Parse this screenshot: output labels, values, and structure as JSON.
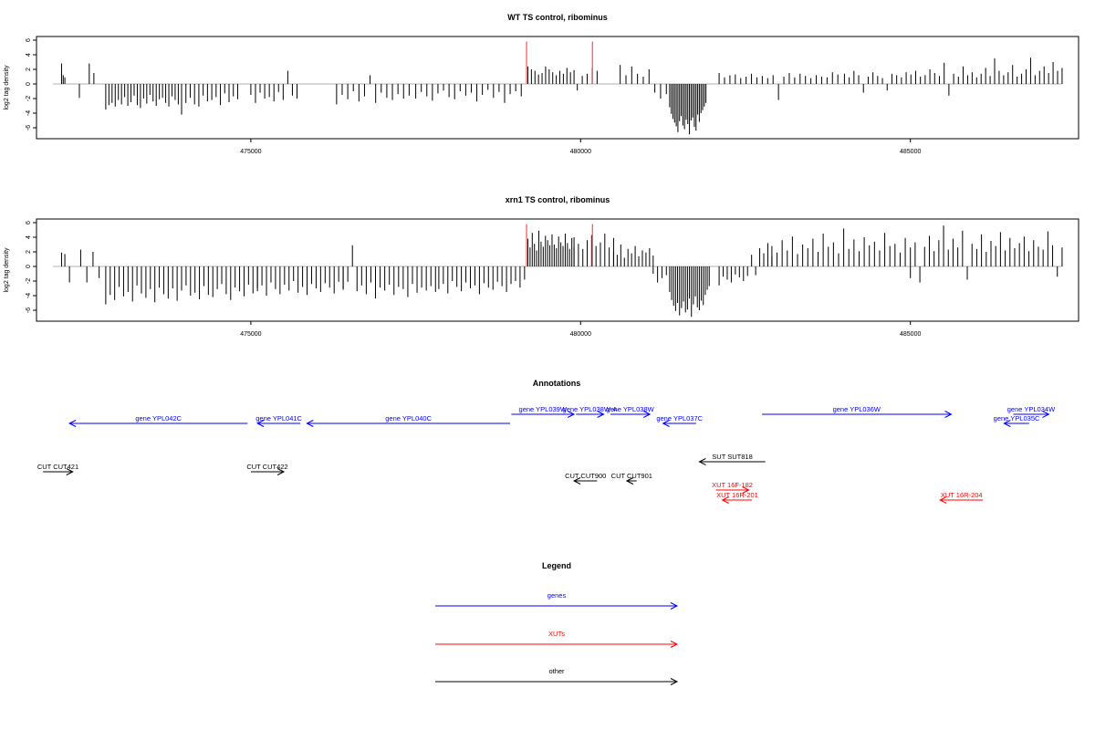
{
  "colors": {
    "genes": "#0000ff",
    "xuts": "#ff0000",
    "other": "#000000",
    "highlight": "#ff6666",
    "baseline": "#999999"
  },
  "chart_data": [
    {
      "type": "bar",
      "title": "WT TS control, ribominus",
      "ylabel": "log2 tag density",
      "xlim": [
        471750,
        487550
      ],
      "ylim": [
        -7.5,
        6.5
      ],
      "xticks": [
        475000,
        480000,
        485000
      ],
      "yticks": [
        6,
        4,
        2,
        0,
        -2,
        -4,
        -6
      ],
      "highlight_positions": [
        479180,
        480180
      ],
      "highlight_value": 5.8,
      "segments": [
        {
          "start": 472130,
          "end": 472180,
          "values": [
            2.8,
            1.2,
            0.9
          ]
        },
        {
          "start": 472550,
          "end": 472620,
          "values": [
            2.8,
            1.5
          ]
        },
        {
          "start": 472400,
          "end": 472420,
          "values": [
            -1.9
          ]
        },
        {
          "start": 472800,
          "end": 473900,
          "values": [
            -3.5,
            -2.9,
            -2.6,
            -3.1,
            -2.2,
            -2.8,
            -1.8,
            -3.0,
            -2.5,
            -1.6,
            -2.9,
            -3.3,
            -2.0,
            -2.7,
            -1.5,
            -2.4,
            -3.0,
            -2.1,
            -1.9,
            -2.6,
            -3.1,
            -1.7,
            -2.2,
            -2.8
          ]
        },
        {
          "start": 473950,
          "end": 474800,
          "values": [
            -4.2,
            -2.6,
            -1.9,
            -2.8,
            -3.1,
            -1.6,
            -2.4,
            -2.2,
            -1.8,
            -2.9,
            -1.3,
            -2.5,
            -1.7,
            -2.1
          ]
        },
        {
          "start": 475000,
          "end": 475700,
          "values": [
            -1.5,
            -2.6,
            -1.2,
            -2.0,
            -1.8,
            -2.4,
            -1.1,
            -2.2,
            1.8,
            -1.6,
            -2.0
          ]
        },
        {
          "start": 476300,
          "end": 477400,
          "values": [
            -2.8,
            -1.5,
            -2.1,
            -1.0,
            -2.4,
            -1.7,
            1.2,
            -2.6,
            -1.2,
            -1.9,
            -2.2,
            -1.4,
            -2.0,
            -1.6
          ]
        },
        {
          "start": 477500,
          "end": 479100,
          "values": [
            -2.0,
            -1.1,
            -1.7,
            -2.3,
            -1.3,
            -0.9,
            -1.8,
            -2.1,
            -1.0,
            -1.6,
            -1.2,
            -2.4,
            -1.5,
            -0.8,
            -1.9,
            -1.1,
            -2.6,
            -1.4,
            -1.0,
            -1.7
          ]
        },
        {
          "start": 479200,
          "end": 479900,
          "values": [
            2.4,
            2.0,
            1.8,
            1.3,
            1.5,
            2.4,
            2.0,
            1.6,
            1.2,
            1.8,
            1.4,
            2.2,
            1.6,
            1.9
          ]
        },
        {
          "start": 479950,
          "end": 480250,
          "values": [
            -0.9,
            1.1,
            1.4,
            2.2,
            1.8
          ]
        },
        {
          "start": 480600,
          "end": 481300,
          "values": [
            2.6,
            1.2,
            2.4,
            1.4,
            1.0,
            2.0,
            -1.2,
            -2.0,
            -1.4
          ]
        },
        {
          "start": 481350,
          "end": 481900,
          "values": [
            -3.2,
            -4.1,
            -4.8,
            -5.3,
            -5.8,
            -6.6,
            -5.1,
            -4.4,
            -5.7,
            -6.2,
            -4.9,
            -5.5,
            -6.9,
            -5.0,
            -4.6,
            -5.9,
            -6.4,
            -4.2,
            -5.2,
            -4.0,
            -3.6,
            -3.1,
            -2.6
          ]
        },
        {
          "start": 482100,
          "end": 483900,
          "values": [
            1.5,
            0.9,
            1.2,
            1.3,
            0.8,
            1.0,
            1.4,
            0.9,
            1.1,
            0.8,
            1.2,
            -2.2,
            1.0,
            1.5,
            0.9,
            1.4,
            1.1,
            0.8,
            1.2,
            1.0,
            0.9,
            1.6,
            1.3
          ]
        },
        {
          "start": 484000,
          "end": 485800,
          "values": [
            1.4,
            0.9,
            1.8,
            1.2,
            -1.2,
            1.0,
            1.6,
            1.1,
            0.8,
            -0.9,
            1.4,
            1.2,
            0.9,
            1.6,
            1.3,
            1.8,
            1.0,
            1.2,
            2.0,
            1.5,
            1.1,
            2.9,
            -1.6,
            1.4,
            1.0,
            1.7
          ]
        },
        {
          "start": 485800,
          "end": 487300,
          "values": [
            2.4,
            1.2,
            1.6,
            0.9,
            1.4,
            2.2,
            1.1,
            3.5,
            1.8,
            1.2,
            1.6,
            2.6,
            1.0,
            1.4,
            2.0,
            3.6,
            1.2,
            1.8,
            2.4,
            1.5,
            3.0,
            1.8,
            2.2
          ]
        }
      ]
    },
    {
      "type": "bar",
      "title": "xrn1 TS control, ribominus",
      "ylabel": "log2 tag density",
      "xlim": [
        471750,
        487550
      ],
      "ylim": [
        -7.5,
        6.5
      ],
      "xticks": [
        475000,
        480000,
        485000
      ],
      "yticks": [
        6,
        4,
        2,
        0,
        -2,
        -4,
        -6
      ],
      "highlight_positions": [
        479180,
        480180
      ],
      "highlight_value": 5.8,
      "segments": [
        {
          "start": 472130,
          "end": 472180,
          "values": [
            1.9,
            1.7
          ]
        },
        {
          "start": 472250,
          "end": 472300,
          "values": [
            -2.2
          ]
        },
        {
          "start": 472420,
          "end": 472700,
          "values": [
            2.3,
            -2.2,
            2.0,
            -1.6
          ]
        },
        {
          "start": 472800,
          "end": 475100,
          "values": [
            -5.2,
            -3.9,
            -4.6,
            -2.8,
            -4.1,
            -3.5,
            -4.8,
            -2.6,
            -3.7,
            -4.3,
            -3.1,
            -4.9,
            -2.9,
            -3.8,
            -4.4,
            -3.0,
            -4.7,
            -3.3,
            -2.6,
            -4.0,
            -3.6,
            -4.5,
            -2.7,
            -3.9,
            -4.2,
            -3.1,
            -2.4,
            -3.8,
            -4.6,
            -2.9,
            -3.4,
            -4.1,
            -2.5,
            -3.7,
            -3.0
          ]
        },
        {
          "start": 475100,
          "end": 476400,
          "values": [
            -3.4,
            -2.6,
            -4.0,
            -2.2,
            -3.1,
            -3.8,
            -2.5,
            -3.3,
            -2.0,
            -3.6,
            -2.8,
            -3.9,
            -2.4,
            -3.0,
            -3.5,
            -2.3,
            -2.9,
            -3.7,
            -2.1,
            -3.2
          ]
        },
        {
          "start": 476400,
          "end": 477800,
          "values": [
            -3.0,
            -2.1,
            2.9,
            -3.4,
            -2.6,
            -3.8,
            -2.2,
            -4.4,
            -2.9,
            -3.3,
            -2.5,
            -3.9,
            -2.8,
            -3.1,
            -4.2,
            -2.4,
            -3.6,
            -2.9,
            -3.3,
            -2.7,
            -3.5
          ]
        },
        {
          "start": 477850,
          "end": 479150,
          "values": [
            -3.1,
            -2.4,
            -3.7,
            -2.0,
            -2.8,
            -3.4,
            -2.2,
            -3.0,
            -2.6,
            -3.8,
            -2.3,
            -2.9,
            -3.2,
            -2.1,
            -2.7,
            -3.5,
            -2.4,
            -2.0,
            -2.9,
            -1.8
          ]
        },
        {
          "start": 479200,
          "end": 479900,
          "values": [
            3.8,
            2.6,
            4.6,
            3.1,
            2.2,
            4.9,
            3.4,
            2.7,
            4.2,
            3.6,
            2.9,
            4.4,
            3.0,
            2.5,
            4.1,
            3.3,
            2.8,
            4.5,
            3.2,
            2.4,
            3.9,
            2.6
          ]
        },
        {
          "start": 479900,
          "end": 480500,
          "values": [
            4.0,
            3.1,
            2.4,
            3.6,
            4.3,
            2.8,
            3.3,
            4.5,
            2.6,
            3.9
          ]
        },
        {
          "start": 480500,
          "end": 481100,
          "values": [
            2.1,
            1.6,
            3.0,
            1.2,
            2.4,
            1.8,
            2.8,
            1.4,
            2.2,
            1.9,
            2.5,
            1.5
          ]
        },
        {
          "start": 481100,
          "end": 481300,
          "values": [
            -1.0,
            -2.2,
            -1.6,
            -1.2
          ]
        },
        {
          "start": 481350,
          "end": 481950,
          "values": [
            -3.5,
            -4.6,
            -5.4,
            -6.1,
            -5.0,
            -6.7,
            -5.7,
            -4.8,
            -6.3,
            -5.9,
            -4.4,
            -6.9,
            -5.2,
            -4.1,
            -5.6,
            -6.0,
            -4.7,
            -5.3,
            -3.9,
            -3.2,
            -2.7
          ]
        },
        {
          "start": 482100,
          "end": 482900,
          "values": [
            -2.6,
            -1.4,
            -1.8,
            -2.2,
            -1.1,
            -1.5,
            -2.0,
            -1.3,
            1.6,
            -1.2,
            2.5,
            1.8,
            3.2,
            1.4
          ]
        },
        {
          "start": 482900,
          "end": 485000,
          "values": [
            2.8,
            1.9,
            3.6,
            2.2,
            4.1,
            1.7,
            3.0,
            2.5,
            3.8,
            2.0,
            4.5,
            2.7,
            3.3,
            1.8,
            5.2,
            2.4,
            3.7,
            2.1,
            4.0,
            2.9,
            3.4,
            2.2,
            4.6,
            2.8,
            3.1,
            1.9,
            3.9,
            2.6
          ]
        },
        {
          "start": 485000,
          "end": 487300,
          "values": [
            -1.6,
            3.3,
            -2.2,
            2.7,
            4.2,
            2.1,
            3.6,
            5.6,
            2.3,
            3.8,
            2.6,
            4.9,
            -1.8,
            3.1,
            2.4,
            4.4,
            2.0,
            3.5,
            2.8,
            4.7,
            2.2,
            3.9,
            2.5,
            3.2,
            4.1,
            2.1,
            3.6,
            2.7,
            2.3,
            4.8,
            2.9,
            -1.4,
            2.6
          ]
        }
      ]
    }
  ],
  "annotations": {
    "title": "Annotations",
    "features": [
      {
        "label": "gene YPL042C",
        "start": 472250,
        "end": 474950,
        "strand": "-",
        "row": 2,
        "type": "gene"
      },
      {
        "label": "gene YPL041C",
        "start": 475100,
        "end": 475750,
        "strand": "-",
        "row": 2,
        "type": "gene"
      },
      {
        "label": "gene YPL040C",
        "start": 475850,
        "end": 478930,
        "strand": "-",
        "row": 2,
        "type": "gene"
      },
      {
        "label": "gene YPL039W",
        "start": 478950,
        "end": 479900,
        "strand": "+",
        "row": 1,
        "type": "gene"
      },
      {
        "label": "gene YPL038W-A",
        "start": 479930,
        "end": 480350,
        "strand": "+",
        "row": 1,
        "type": "gene"
      },
      {
        "label": "gene YPL038W",
        "start": 480450,
        "end": 481050,
        "strand": "+",
        "row": 1,
        "type": "gene"
      },
      {
        "label": "gene YPL037C",
        "start": 481250,
        "end": 481750,
        "strand": "-",
        "row": 2,
        "type": "gene"
      },
      {
        "label": "gene YPL036W",
        "start": 482750,
        "end": 485620,
        "strand": "+",
        "row": 1,
        "type": "gene"
      },
      {
        "label": "gene YPL035C",
        "start": 486420,
        "end": 486800,
        "strand": "-",
        "row": 2,
        "type": "gene"
      },
      {
        "label": "gene YPL034W",
        "start": 486560,
        "end": 487100,
        "strand": "+",
        "row": 1,
        "type": "gene"
      },
      {
        "label": "SUT SUT818",
        "start": 481800,
        "end": 482800,
        "strand": "-",
        "row": 5,
        "type": "other"
      },
      {
        "label": "CUT CUT421",
        "start": 471850,
        "end": 472300,
        "strand": "+",
        "row": 6,
        "type": "other"
      },
      {
        "label": "CUT CUT422",
        "start": 475000,
        "end": 475500,
        "strand": "+",
        "row": 6,
        "type": "other"
      },
      {
        "label": "CUT CUT900",
        "start": 479900,
        "end": 480250,
        "strand": "-",
        "row": 7,
        "type": "other"
      },
      {
        "label": "CUT CUT901",
        "start": 480700,
        "end": 480850,
        "strand": "-",
        "row": 7,
        "type": "other"
      },
      {
        "label": "XUT 16F-182",
        "start": 482050,
        "end": 482550,
        "strand": "+",
        "row": 8,
        "type": "xut"
      },
      {
        "label": "XUT 16R-201",
        "start": 482150,
        "end": 482600,
        "strand": "-",
        "row": 9,
        "type": "xut"
      },
      {
        "label": "XUT 16R-204",
        "start": 485450,
        "end": 486100,
        "strand": "-",
        "row": 9,
        "type": "xut"
      }
    ]
  },
  "legend": {
    "title": "Legend",
    "items": [
      {
        "label": "genes",
        "color": "#0000ff"
      },
      {
        "label": "XUTs",
        "color": "#ff0000"
      },
      {
        "label": "other",
        "color": "#000000"
      }
    ]
  }
}
